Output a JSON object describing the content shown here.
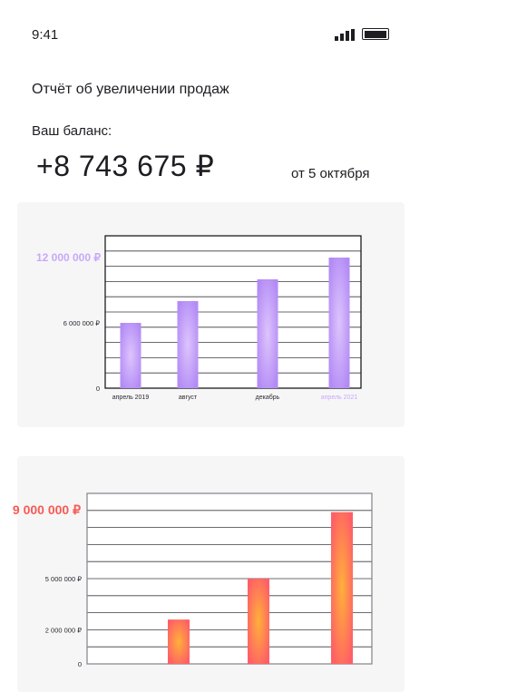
{
  "status_bar": {
    "time": "9:41",
    "signal_icon": "signal-bars-icon",
    "battery_icon": "battery-icon",
    "battery_level": 1.0
  },
  "report": {
    "title": "Отчёт об увеличении продаж",
    "balance_label": "Ваш баланс:",
    "balance": "+8 743 675 ₽",
    "date": "от 5 октября"
  },
  "colors": {
    "purple": "#b98cf6",
    "purple_light": "#c8a8fa",
    "orange": "#ff6a5c",
    "red_label": "#f85a53"
  },
  "chart_data": [
    {
      "type": "bar",
      "categories": [
        "апрель 2019",
        "август",
        "декабрь",
        "апрель 2021"
      ],
      "values": [
        6000000,
        8000000,
        10000000,
        12000000
      ],
      "ylim": [
        0,
        14000000
      ],
      "ytick_labels": [
        "0",
        "6 000 000 ₽",
        "12 000 000 ₽"
      ],
      "ytick_values": [
        0,
        6000000,
        12000000
      ],
      "highlight_tick": "12 000 000 ₽",
      "highlight_category": "апрель 2021",
      "grid": true
    },
    {
      "type": "bar",
      "values": [
        0,
        2600000,
        5000000,
        8900000
      ],
      "ylim": [
        0,
        10000000
      ],
      "ytick_labels": [
        "0",
        "2 000 000 ₽",
        "5 000 000 ₽",
        "9 000 000 ₽"
      ],
      "ytick_values": [
        0,
        2000000,
        5000000,
        9000000
      ],
      "highlight_tick": "9 000 000 ₽",
      "grid": true
    }
  ]
}
